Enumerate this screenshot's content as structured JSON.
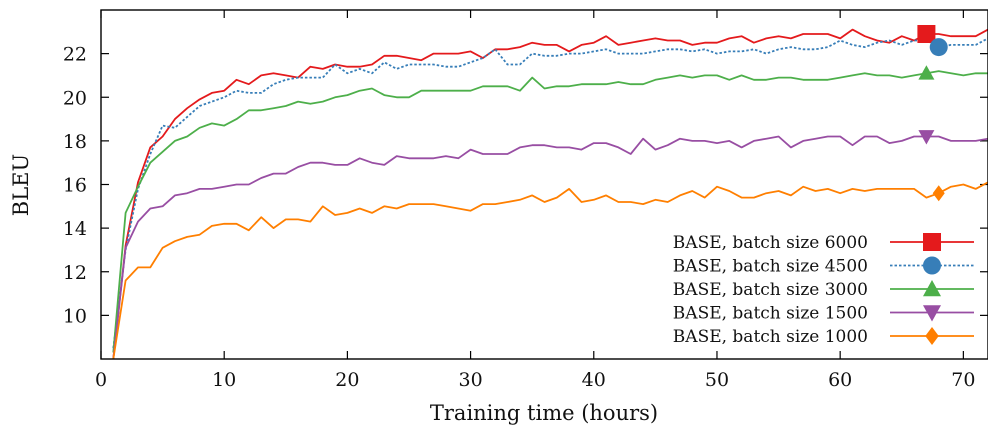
{
  "chart_data": {
    "type": "line",
    "title": "",
    "xlabel": "Training time (hours)",
    "ylabel": "BLEU",
    "xlim": [
      0,
      72
    ],
    "ylim": [
      8,
      24
    ],
    "xticks": [
      0,
      10,
      20,
      30,
      40,
      50,
      60,
      70
    ],
    "yticks": [
      10,
      12,
      14,
      16,
      18,
      20,
      22
    ],
    "grid": false,
    "legend_position": "bottom-right",
    "x": [
      1,
      2,
      3,
      4,
      5,
      6,
      7,
      8,
      9,
      10,
      11,
      12,
      13,
      14,
      15,
      16,
      17,
      18,
      19,
      20,
      21,
      22,
      23,
      24,
      25,
      26,
      27,
      28,
      29,
      30,
      31,
      32,
      33,
      34,
      35,
      36,
      37,
      38,
      39,
      40,
      41,
      42,
      43,
      44,
      45,
      46,
      47,
      48,
      49,
      50,
      51,
      52,
      53,
      54,
      55,
      56,
      57,
      58,
      59,
      60,
      61,
      62,
      63,
      64,
      65,
      66,
      67,
      68,
      69,
      70,
      71,
      72
    ],
    "series": [
      {
        "name": "BASE, batch size 6000",
        "color": "#e41a1c",
        "marker": "square",
        "line_style": "solid",
        "values": [
          8.0,
          13.2,
          16.1,
          17.7,
          18.2,
          19.0,
          19.5,
          19.9,
          20.2,
          20.3,
          20.8,
          20.6,
          21.0,
          21.1,
          21.0,
          20.9,
          21.4,
          21.3,
          21.5,
          21.4,
          21.4,
          21.5,
          21.9,
          21.9,
          21.8,
          21.7,
          22.0,
          22.0,
          22.0,
          22.1,
          21.8,
          22.2,
          22.2,
          22.3,
          22.5,
          22.4,
          22.4,
          22.1,
          22.4,
          22.5,
          22.8,
          22.4,
          22.5,
          22.6,
          22.7,
          22.6,
          22.6,
          22.4,
          22.5,
          22.5,
          22.7,
          22.8,
          22.5,
          22.7,
          22.8,
          22.7,
          22.9,
          22.9,
          22.9,
          22.7,
          23.1,
          22.8,
          22.6,
          22.5,
          22.8,
          22.6,
          22.9,
          22.9,
          22.8,
          22.8,
          22.8,
          23.1
        ]
      },
      {
        "name": "BASE, batch size 4500",
        "color": "#377eb8",
        "marker": "circle",
        "line_style": "dotted",
        "values": [
          8.5,
          13.0,
          15.8,
          17.4,
          18.7,
          18.6,
          19.1,
          19.6,
          19.8,
          20.0,
          20.3,
          20.2,
          20.2,
          20.6,
          20.8,
          20.9,
          20.9,
          20.9,
          21.5,
          21.1,
          21.3,
          21.1,
          21.6,
          21.3,
          21.5,
          21.5,
          21.5,
          21.4,
          21.4,
          21.6,
          21.8,
          22.2,
          21.5,
          21.5,
          22.0,
          21.9,
          21.9,
          22.0,
          22.0,
          22.1,
          22.2,
          22.0,
          22.0,
          22.0,
          22.1,
          22.2,
          22.2,
          22.1,
          22.2,
          22.0,
          22.1,
          22.1,
          22.2,
          22.0,
          22.2,
          22.3,
          22.2,
          22.2,
          22.3,
          22.6,
          22.4,
          22.3,
          22.5,
          22.6,
          22.4,
          22.6,
          22.6,
          22.3,
          22.4,
          22.4,
          22.4,
          22.7
        ]
      },
      {
        "name": "BASE, batch size 3000",
        "color": "#4daf4a",
        "marker": "triangle-up",
        "line_style": "solid",
        "values": [
          8.3,
          14.7,
          15.9,
          17.0,
          17.5,
          18.0,
          18.2,
          18.6,
          18.8,
          18.7,
          19.0,
          19.4,
          19.4,
          19.5,
          19.6,
          19.8,
          19.7,
          19.8,
          20.0,
          20.1,
          20.3,
          20.4,
          20.1,
          20.0,
          20.0,
          20.3,
          20.3,
          20.3,
          20.3,
          20.3,
          20.5,
          20.5,
          20.5,
          20.3,
          20.9,
          20.4,
          20.5,
          20.5,
          20.6,
          20.6,
          20.6,
          20.7,
          20.6,
          20.6,
          20.8,
          20.9,
          21.0,
          20.9,
          21.0,
          21.0,
          20.8,
          21.0,
          20.8,
          20.8,
          20.9,
          20.9,
          20.8,
          20.8,
          20.8,
          20.9,
          21.0,
          21.1,
          21.0,
          21.0,
          20.9,
          21.0,
          21.1,
          21.2,
          21.1,
          21.0,
          21.1,
          21.1
        ]
      },
      {
        "name": "BASE, batch size 1500",
        "color": "#984ea3",
        "marker": "triangle-down",
        "line_style": "solid",
        "values": [
          8.0,
          13.1,
          14.3,
          14.9,
          15.0,
          15.5,
          15.6,
          15.8,
          15.8,
          15.9,
          16.0,
          16.0,
          16.3,
          16.5,
          16.5,
          16.8,
          17.0,
          17.0,
          16.9,
          16.9,
          17.2,
          17.0,
          16.9,
          17.3,
          17.2,
          17.2,
          17.2,
          17.3,
          17.2,
          17.6,
          17.4,
          17.4,
          17.4,
          17.7,
          17.8,
          17.8,
          17.7,
          17.7,
          17.6,
          17.9,
          17.9,
          17.7,
          17.4,
          18.1,
          17.6,
          17.8,
          18.1,
          18.0,
          18.0,
          17.9,
          18.0,
          17.7,
          18.0,
          18.1,
          18.2,
          17.7,
          18.0,
          18.1,
          18.2,
          18.2,
          17.8,
          18.2,
          18.2,
          17.9,
          18.0,
          18.2,
          18.2,
          18.2,
          18.0,
          18.0,
          18.0,
          18.1
        ]
      },
      {
        "name": "BASE, batch size 1000",
        "color": "#ff7f00",
        "marker": "diamond",
        "line_style": "solid",
        "values": [
          8.0,
          11.6,
          12.2,
          12.2,
          13.1,
          13.4,
          13.6,
          13.7,
          14.1,
          14.2,
          14.2,
          13.9,
          14.5,
          14.0,
          14.4,
          14.4,
          14.3,
          15.0,
          14.6,
          14.7,
          14.9,
          14.7,
          15.0,
          14.9,
          15.1,
          15.1,
          15.1,
          15.0,
          14.9,
          14.8,
          15.1,
          15.1,
          15.2,
          15.3,
          15.5,
          15.2,
          15.4,
          15.8,
          15.2,
          15.3,
          15.5,
          15.2,
          15.2,
          15.1,
          15.3,
          15.2,
          15.5,
          15.7,
          15.4,
          15.9,
          15.7,
          15.4,
          15.4,
          15.6,
          15.7,
          15.5,
          15.9,
          15.7,
          15.8,
          15.6,
          15.8,
          15.7,
          15.8,
          15.8,
          15.8,
          15.8,
          15.4,
          15.6,
          15.9,
          16.0,
          15.8,
          16.1
        ]
      }
    ]
  }
}
